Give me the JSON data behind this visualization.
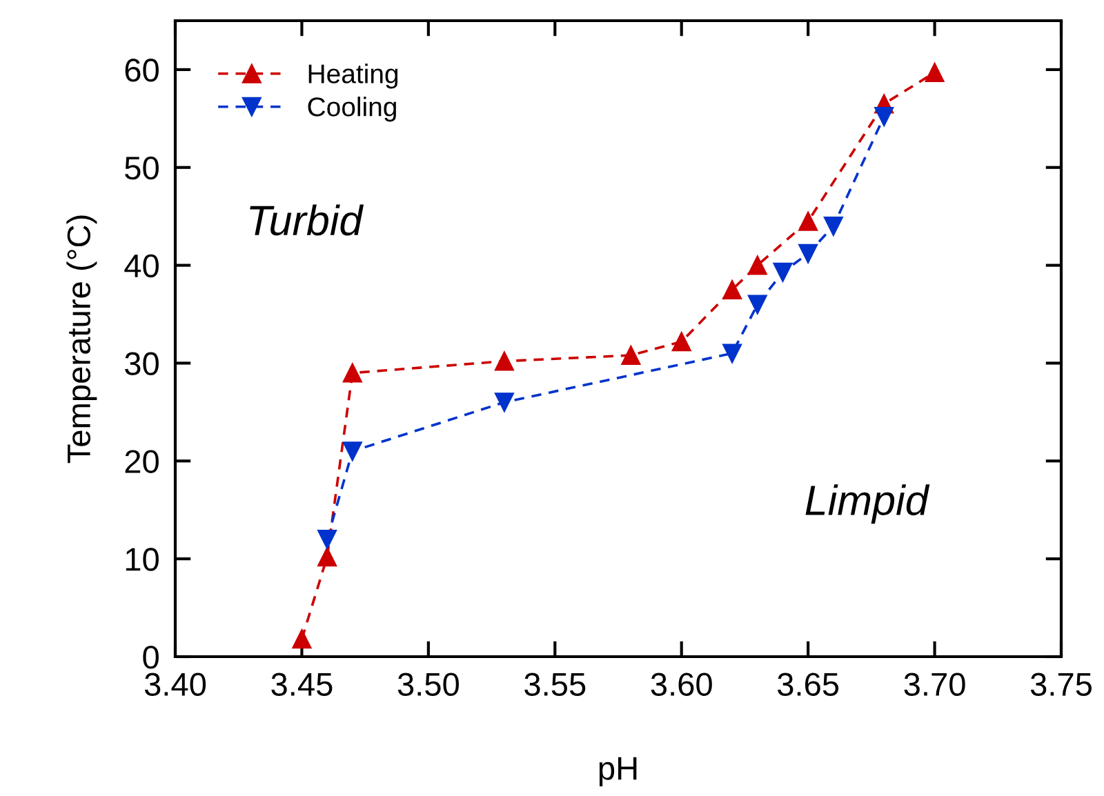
{
  "chart_data": {
    "type": "line",
    "xlabel": "pH",
    "ylabel": "Temperature (°C)",
    "xlim": [
      3.4,
      3.75
    ],
    "xticks": [
      {
        "value": 3.4,
        "label": "3.40"
      },
      {
        "value": 3.45,
        "label": "3.45"
      },
      {
        "value": 3.5,
        "label": "3.50"
      },
      {
        "value": 3.55,
        "label": "3.55"
      },
      {
        "value": 3.6,
        "label": "3.60"
      },
      {
        "value": 3.65,
        "label": "3.65"
      },
      {
        "value": 3.7,
        "label": "3.70"
      },
      {
        "value": 3.75,
        "label": "3.75"
      }
    ],
    "ylim": [
      0,
      65
    ],
    "yticks": [
      0,
      10,
      20,
      30,
      40,
      50,
      60
    ],
    "grid": false,
    "legend": "top left",
    "line_style": "dashed",
    "annotations": [
      "Turbid",
      "Limpid"
    ],
    "series": [
      {
        "name": "Heating",
        "color": "#cc0000",
        "marker": "triangle",
        "x": [
          3.45,
          3.46,
          3.47,
          3.53,
          3.58,
          3.6,
          3.62,
          3.63,
          3.65,
          3.68,
          3.7
        ],
        "values": [
          1.8,
          10.2,
          29,
          30.2,
          30.8,
          32.2,
          37.5,
          40,
          44.5,
          56.5,
          59.7
        ]
      },
      {
        "name": "Cooling",
        "color": "#0033cc",
        "marker": "triangle_down",
        "x": [
          3.46,
          3.47,
          3.53,
          3.62,
          3.63,
          3.64,
          3.65,
          3.66,
          3.68
        ],
        "values": [
          12,
          21,
          26,
          31,
          36,
          39.3,
          41.2,
          44,
          55.2
        ]
      }
    ]
  }
}
